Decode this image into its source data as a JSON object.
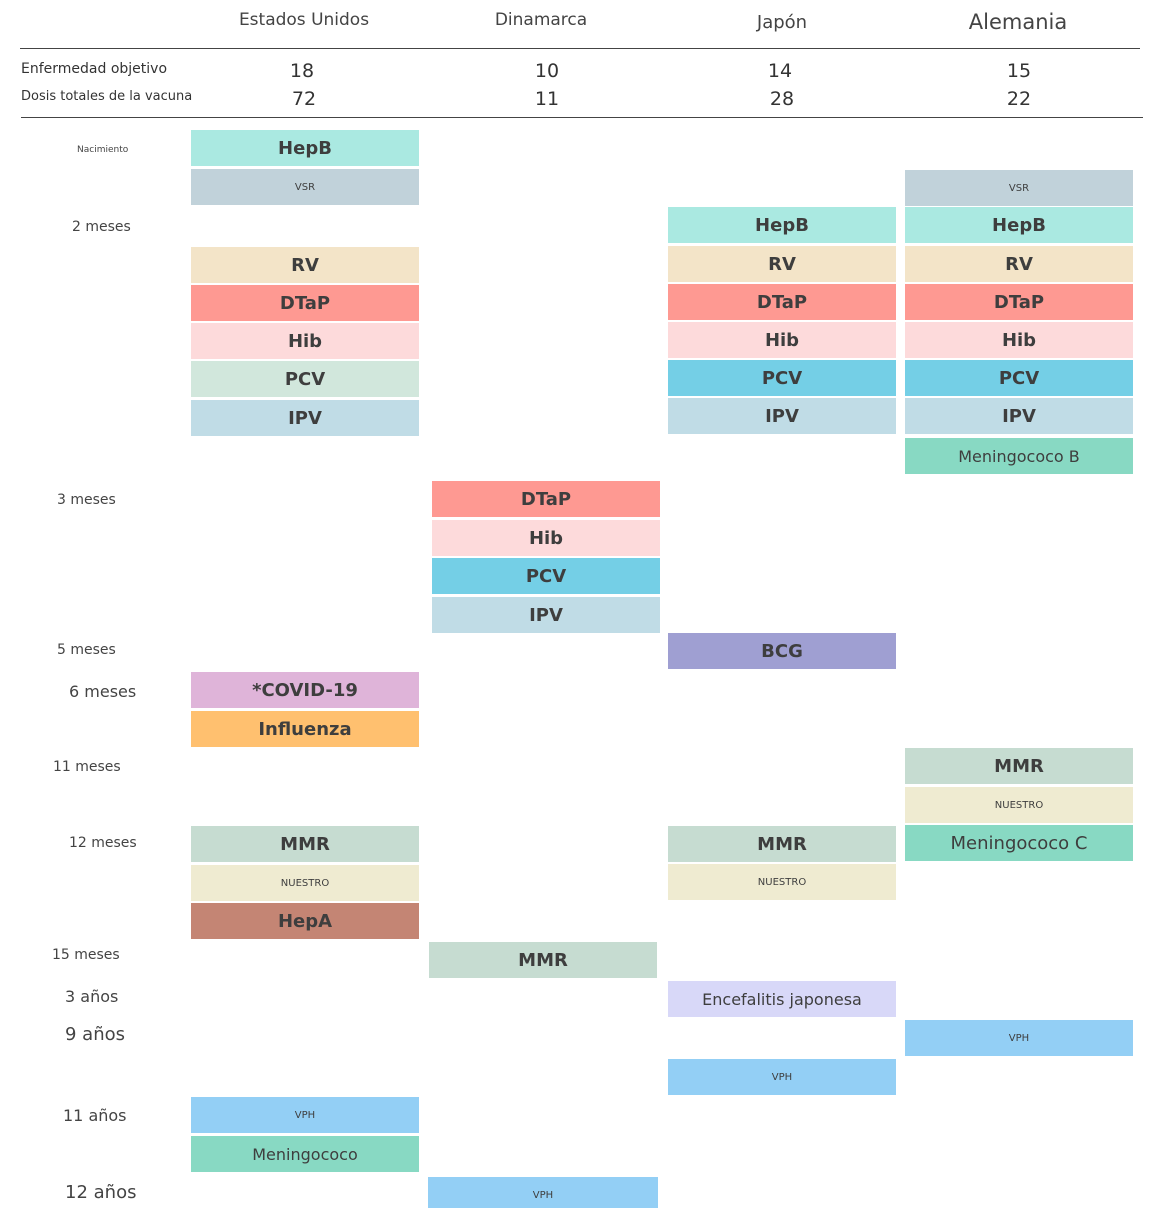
{
  "header": {
    "countries": [
      "Estados Unidos",
      "Dinamarca",
      "Japón",
      "Alemania"
    ],
    "rows": [
      {
        "label": "Enfermedad objetivo",
        "values": [
          "18",
          "10",
          "14",
          "15"
        ]
      },
      {
        "label": "Dosis totales de la vacuna",
        "values": [
          "72",
          "11",
          "28",
          "22"
        ]
      }
    ]
  },
  "ages": [
    "Nacimiento",
    "2 meses",
    "3 meses",
    "5 meses",
    "6 meses",
    "11 meses",
    "12 meses",
    "15 meses",
    "3 años",
    "9 años",
    "11 años",
    "12 años"
  ],
  "columns": [
    {
      "country": "Estados Unidos",
      "vaccines": [
        {
          "label": "HepB",
          "color": "#aae9e1"
        },
        {
          "label": "VSR",
          "color": "#c1d2da"
        },
        {
          "label": "RV",
          "color": "#f3e4c8"
        },
        {
          "label": "DTaP",
          "color": "#fe9992"
        },
        {
          "label": "Hib",
          "color": "#fddadb"
        },
        {
          "label": "PCV",
          "color": "#d1e7dc"
        },
        {
          "label": "IPV",
          "color": "#c0dce6"
        },
        {
          "label": "*COVID-19",
          "color": "#dfb4d9"
        },
        {
          "label": "Influenza",
          "color": "#ffc06f"
        },
        {
          "label": "MMR",
          "color": "#c6dcd1"
        },
        {
          "label": "NUESTRO",
          "color": "#efebd1"
        },
        {
          "label": "HepA",
          "color": "#c48574"
        },
        {
          "label": "VPH",
          "color": "#93cff5"
        },
        {
          "label": "Meningococo",
          "color": "#88d9c3"
        }
      ]
    },
    {
      "country": "Dinamarca",
      "vaccines": [
        {
          "label": "DTaP",
          "color": "#fe9992"
        },
        {
          "label": "Hib",
          "color": "#fddadb"
        },
        {
          "label": "PCV",
          "color": "#74cfe6"
        },
        {
          "label": "IPV",
          "color": "#c0dce6"
        },
        {
          "label": "MMR",
          "color": "#c6dcd1"
        },
        {
          "label": "VPH",
          "color": "#93cff5"
        }
      ]
    },
    {
      "country": "Japón",
      "vaccines": [
        {
          "label": "HepB",
          "color": "#aae9e1"
        },
        {
          "label": "RV",
          "color": "#f3e4c8"
        },
        {
          "label": "DTaP",
          "color": "#fe9992"
        },
        {
          "label": "Hib",
          "color": "#fddadb"
        },
        {
          "label": "PCV",
          "color": "#74cfe6"
        },
        {
          "label": "IPV",
          "color": "#c0dce6"
        },
        {
          "label": "BCG",
          "color": "#9f9fd2"
        },
        {
          "label": "MMR",
          "color": "#c6dcd1"
        },
        {
          "label": "NUESTRO",
          "color": "#efebd1"
        },
        {
          "label": "Encefalitis japonesa",
          "color": "#d8d8f8"
        },
        {
          "label": "VPH",
          "color": "#93cff5"
        }
      ]
    },
    {
      "country": "Alemania",
      "vaccines": [
        {
          "label": "VSR",
          "color": "#c1d2da"
        },
        {
          "label": "HepB",
          "color": "#aae9e1"
        },
        {
          "label": "RV",
          "color": "#f3e4c8"
        },
        {
          "label": "DTaP",
          "color": "#fe9992"
        },
        {
          "label": "Hib",
          "color": "#fddadb"
        },
        {
          "label": "PCV",
          "color": "#74cfe6"
        },
        {
          "label": "IPV",
          "color": "#c0dce6"
        },
        {
          "label": "Meningococo B",
          "color": "#88d9c3"
        },
        {
          "label": "MMR",
          "color": "#c6dcd1"
        },
        {
          "label": "NUESTRO",
          "color": "#efebd1"
        },
        {
          "label": "Meningococo C",
          "color": "#88d9c3"
        },
        {
          "label": "VPH",
          "color": "#93cff5"
        }
      ]
    }
  ]
}
